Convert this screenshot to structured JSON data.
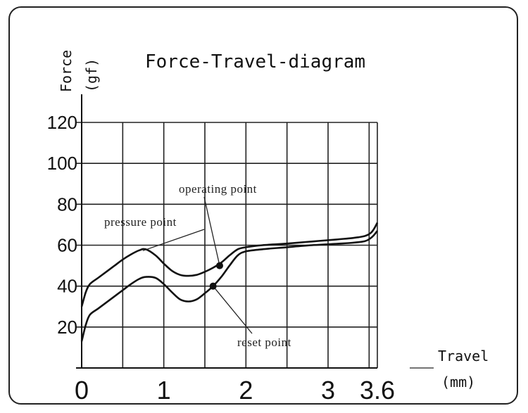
{
  "chart_data": {
    "type": "line",
    "title": "Force-Travel-diagram",
    "ylabel": "Force",
    "ylabel_unit": "(gf)",
    "xlabel": "Travel",
    "xlabel_unit": "(mm)",
    "xlim": [
      0,
      3.6
    ],
    "ylim": [
      0,
      120
    ],
    "x_ticks": [
      0,
      1,
      2,
      3,
      3.6
    ],
    "x_tick_labels": [
      "0",
      "1",
      "2",
      "3",
      "3.6"
    ],
    "y_ticks": [
      20,
      40,
      60,
      80,
      100,
      120
    ],
    "y_tick_labels": [
      "20",
      "40",
      "60",
      "80",
      "100",
      "120"
    ],
    "grid": true,
    "series": [
      {
        "x": [
          0,
          0.05,
          0.1,
          0.2,
          0.3,
          0.4,
          0.5,
          0.6,
          0.7,
          0.78,
          0.9,
          1.0,
          1.1,
          1.2,
          1.3,
          1.4,
          1.5,
          1.6,
          1.7,
          1.8,
          1.9,
          2.0,
          2.2,
          2.5,
          2.8,
          3.1,
          3.3,
          3.45,
          3.52,
          3.56,
          3.6
        ],
        "y": [
          30,
          37,
          41,
          44,
          47,
          50,
          53,
          55.5,
          57.5,
          58,
          55,
          51,
          47.5,
          45.5,
          45,
          45.5,
          47,
          49,
          51.5,
          55,
          58,
          59,
          60,
          60.8,
          61.8,
          62.8,
          63.5,
          64.5,
          66,
          68,
          71
        ]
      },
      {
        "x": [
          0,
          0.05,
          0.1,
          0.2,
          0.3,
          0.4,
          0.5,
          0.6,
          0.7,
          0.78,
          0.9,
          1.0,
          1.1,
          1.2,
          1.3,
          1.4,
          1.5,
          1.6,
          1.7,
          1.8,
          1.9,
          2.0,
          2.2,
          2.5,
          2.8,
          3.1,
          3.3,
          3.45,
          3.52,
          3.56,
          3.6
        ],
        "y": [
          13,
          21,
          26,
          29,
          32,
          35,
          38,
          41,
          43.5,
          44.5,
          44,
          41,
          37,
          33.5,
          32.5,
          33.5,
          36.5,
          40,
          44.5,
          50,
          55,
          57,
          58,
          59,
          60,
          60.7,
          61.2,
          62,
          63.5,
          65,
          67
        ]
      }
    ],
    "annotations": [
      {
        "text": "pressure point",
        "x": 0.78,
        "y": 58
      },
      {
        "text": "operating point",
        "x": 1.68,
        "y": 50
      },
      {
        "text": "reset point",
        "x": 1.6,
        "y": 40
      }
    ]
  }
}
